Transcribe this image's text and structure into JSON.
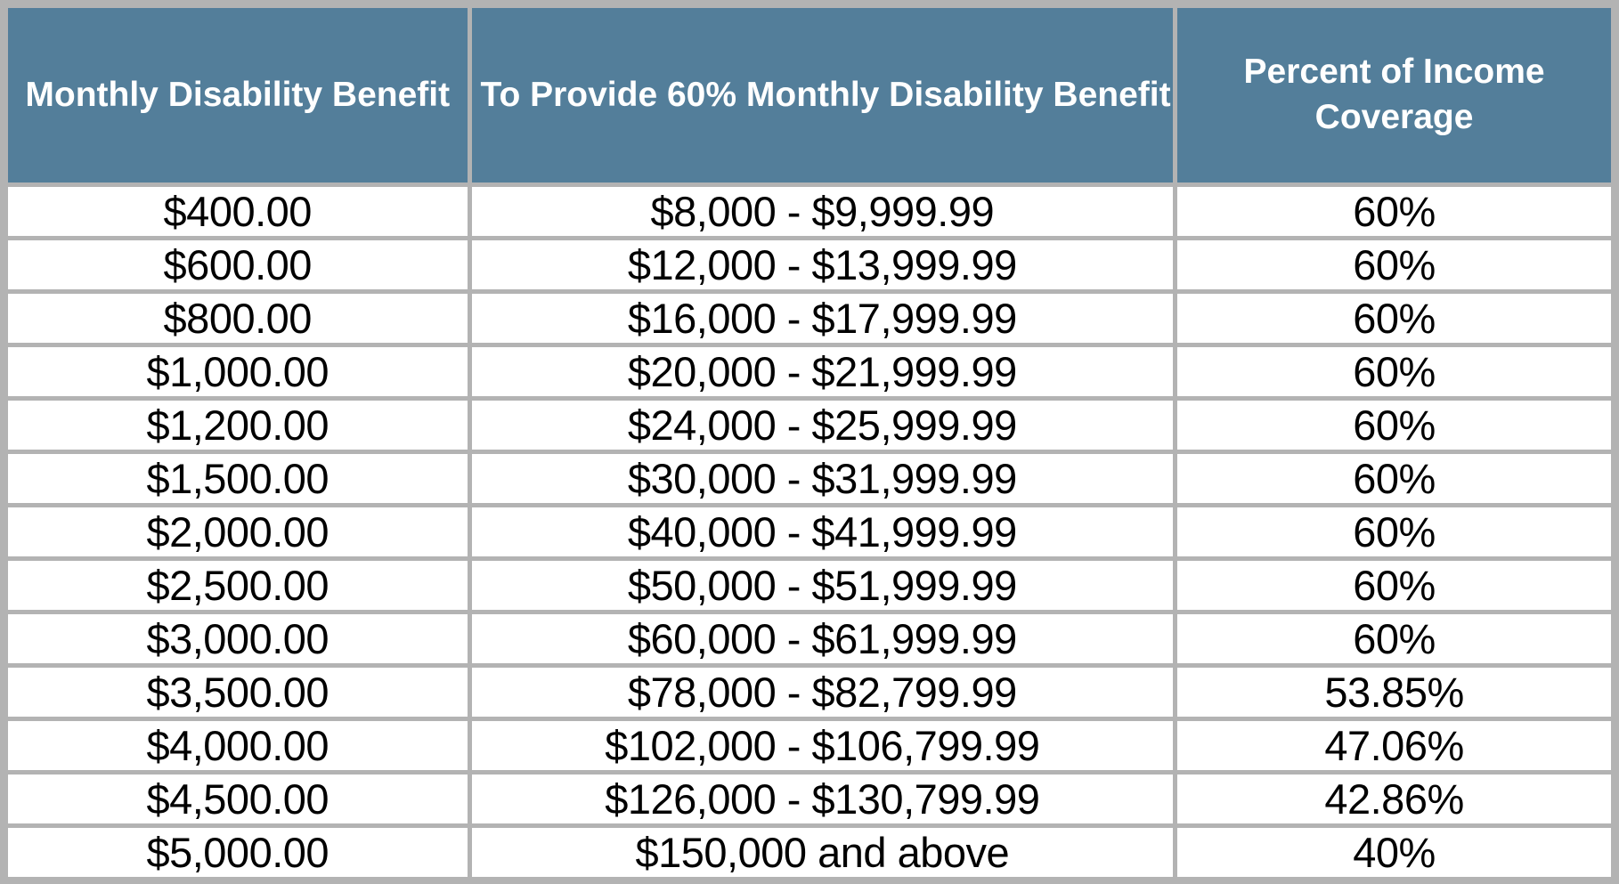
{
  "colors": {
    "header_bg": "#537e9a",
    "header_text": "#ffffff",
    "grid_gray": "#b3b3b3",
    "cell_bg": "#ffffff",
    "cell_text": "#000000"
  },
  "table": {
    "columns": [
      "Monthly Disability Benefit",
      "To Provide 60% Monthly Disability Benefit",
      "Percent of Income Coverage"
    ],
    "rows": [
      {
        "benefit": "$400.00",
        "income_range": "$8,000 - $9,999.99",
        "percent": "60%"
      },
      {
        "benefit": "$600.00",
        "income_range": "$12,000 - $13,999.99",
        "percent": "60%"
      },
      {
        "benefit": "$800.00",
        "income_range": "$16,000 - $17,999.99",
        "percent": "60%"
      },
      {
        "benefit": "$1,000.00",
        "income_range": "$20,000 - $21,999.99",
        "percent": "60%"
      },
      {
        "benefit": "$1,200.00",
        "income_range": "$24,000 - $25,999.99",
        "percent": "60%"
      },
      {
        "benefit": "$1,500.00",
        "income_range": "$30,000 - $31,999.99",
        "percent": "60%"
      },
      {
        "benefit": "$2,000.00",
        "income_range": "$40,000 - $41,999.99",
        "percent": "60%"
      },
      {
        "benefit": "$2,500.00",
        "income_range": "$50,000 - $51,999.99",
        "percent": "60%"
      },
      {
        "benefit": "$3,000.00",
        "income_range": "$60,000 - $61,999.99",
        "percent": "60%"
      },
      {
        "benefit": "$3,500.00",
        "income_range": "$78,000 - $82,799.99",
        "percent": "53.85%"
      },
      {
        "benefit": "$4,000.00",
        "income_range": "$102,000 - $106,799.99",
        "percent": "47.06%"
      },
      {
        "benefit": "$4,500.00",
        "income_range": "$126,000 - $130,799.99",
        "percent": "42.86%"
      },
      {
        "benefit": "$5,000.00",
        "income_range": "$150,000 and above",
        "percent": "40%"
      }
    ]
  }
}
